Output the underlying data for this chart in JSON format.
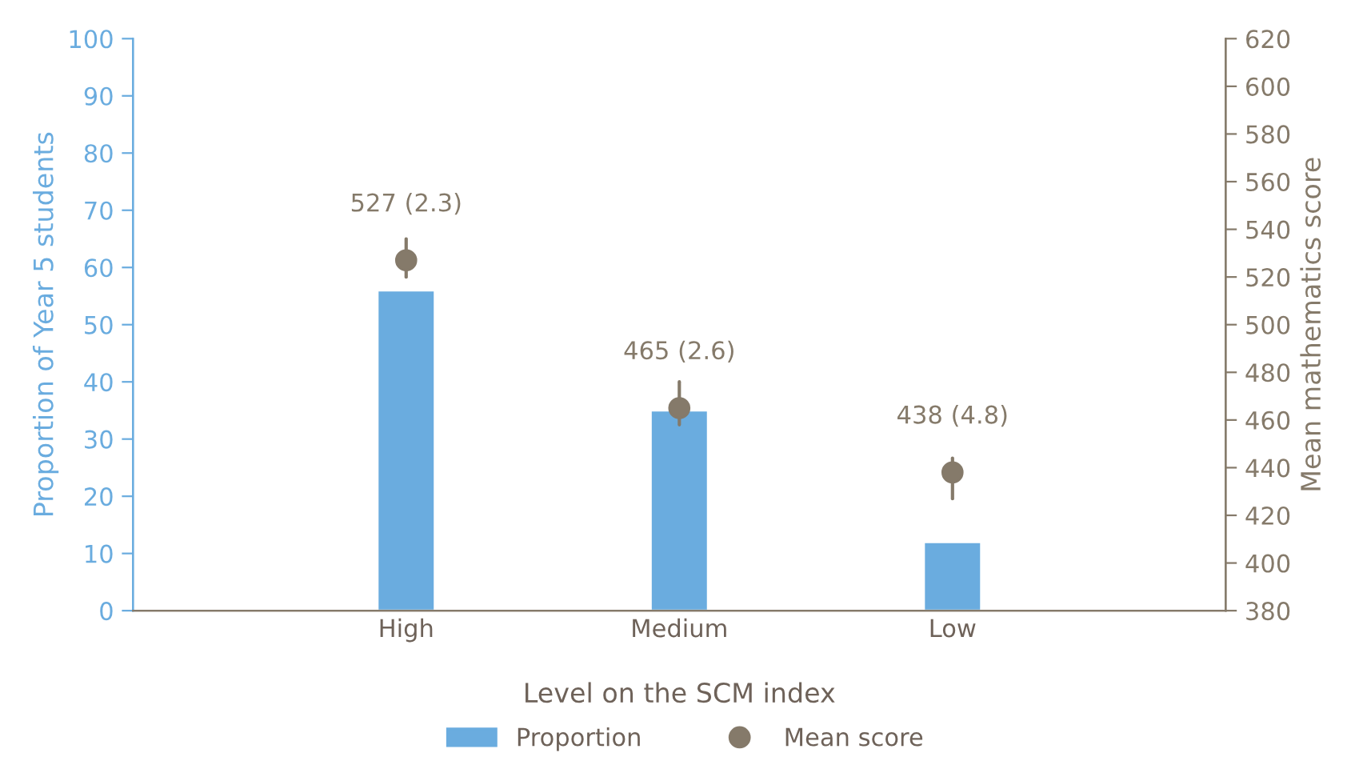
{
  "chart_data": {
    "type": "bar",
    "xlabel": "Level on the SCM index",
    "ylabel": "Proportion of Year 5 students",
    "y2label": "Mean mathematics score",
    "categories": [
      null,
      "High",
      "Medium",
      "Low",
      null
    ],
    "series": [
      {
        "name": "Proportion",
        "color": "#6aacdf",
        "values": [
          null,
          56,
          35,
          12,
          null
        ]
      },
      {
        "name": "Mean score",
        "type": "scatter",
        "axis": "y2",
        "color": "#857a6a",
        "marker": "circle",
        "values": [
          null,
          527,
          465,
          438,
          null
        ],
        "errors": [
          null,
          [
            520,
            536
          ],
          [
            458,
            476
          ],
          [
            427,
            444
          ],
          null
        ],
        "value_labels": [
          null,
          "527 (2.3)",
          "465 (2.6)",
          "438 (4.8)",
          null
        ]
      }
    ],
    "ylim": [
      0,
      100
    ],
    "yticks": [
      0,
      10,
      20,
      30,
      40,
      50,
      60,
      70,
      80,
      90,
      100
    ],
    "y2lim": [
      380,
      620
    ],
    "y2ticks": [
      380,
      400,
      420,
      440,
      460,
      480,
      500,
      520,
      540,
      560,
      580,
      600,
      620
    ],
    "grid": false,
    "legend": "bottom"
  }
}
